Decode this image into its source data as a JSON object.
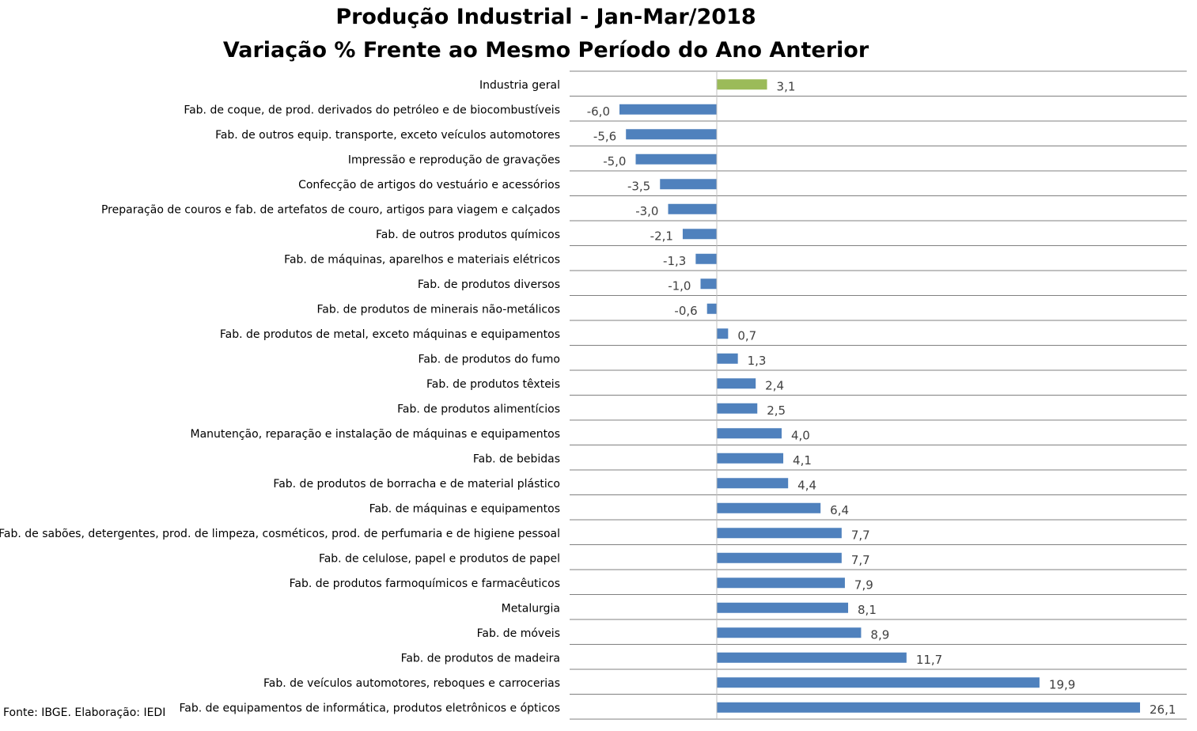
{
  "chart_data": {
    "type": "bar",
    "orientation": "horizontal",
    "title": "Produção Industrial - Jan-Mar/2018",
    "subtitle": "Variação % Frente ao Mesmo Período do Ano Anterior",
    "xlim": [
      -6.8,
      26.1
    ],
    "grid": "horizontal separators between categories",
    "legend": "none",
    "colors": {
      "highlight": "#9BBB59",
      "default": "#4F81BD",
      "grid": "#808080",
      "axis": "#bfbfbf"
    },
    "categories": [
      "Industria geral",
      "Fab. de coque, de prod. derivados do petróleo e de biocombustíveis",
      "Fab. de outros equip. transporte, exceto veículos automotores",
      "Impressão e reprodução de gravações",
      "Confecção de artigos do vestuário e acessórios",
      "Preparação de couros e fab. de artefatos de couro, artigos para viagem e calçados",
      "Fab. de outros produtos químicos",
      "Fab. de máquinas, aparelhos e materiais elétricos",
      "Fab. de produtos diversos",
      "Fab. de produtos de minerais não-metálicos",
      "Fab. de produtos de metal, exceto máquinas e equipamentos",
      "Fab. de produtos do fumo",
      "Fab. de produtos têxteis",
      "Fab. de produtos alimentícios",
      "Manutenção, reparação e instalação de máquinas e equipamentos",
      "Fab. de bebidas",
      "Fab. de produtos de borracha e de material plástico",
      "Fab. de máquinas e equipamentos",
      "Fab. de sabões, detergentes, prod. de limpeza, cosméticos, prod. de perfumaria e de higiene pessoal",
      "Fab. de celulose, papel e produtos de papel",
      "Fab. de produtos farmoquímicos e farmacêuticos",
      "Metalurgia",
      "Fab. de móveis",
      "Fab. de produtos de madeira",
      "Fab. de veículos automotores, reboques e carrocerias",
      "Fab. de equipamentos de informática, produtos eletrônicos e ópticos"
    ],
    "values": [
      3.1,
      -6.0,
      -5.6,
      -5.0,
      -3.5,
      -3.0,
      -2.1,
      -1.3,
      -1.0,
      -0.6,
      0.7,
      1.3,
      2.4,
      2.5,
      4.0,
      4.1,
      4.4,
      6.4,
      7.7,
      7.7,
      7.9,
      8.1,
      8.9,
      11.7,
      19.9,
      26.1
    ],
    "data_labels": [
      "3,1",
      "-6,0",
      "-5,6",
      "-5,0",
      "-3,5",
      "-3,0",
      "-2,1",
      "-1,3",
      "-1,0",
      "-0,6",
      "0,7",
      "1,3",
      "2,4",
      "2,5",
      "4,0",
      "4,1",
      "4,4",
      "6,4",
      "7,7",
      "7,7",
      "7,9",
      "8,1",
      "8,9",
      "11,7",
      "19,9",
      "26,1"
    ],
    "highlight_index": 0
  },
  "source_note": "Fonte: IBGE. Elaboração: IEDI"
}
